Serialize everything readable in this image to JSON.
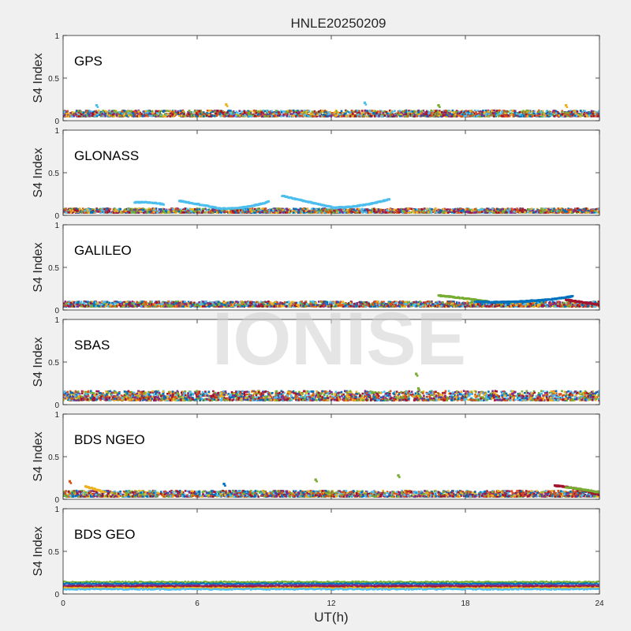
{
  "figure": {
    "title": "HNLE20250209",
    "xlabel": "UT(h)",
    "watermark": "IONISE",
    "background": "#f0f0f0",
    "axes_background": "#ffffff"
  },
  "chart_data": {
    "type": "scatter",
    "title": "HNLE20250209",
    "xlabel": "UT(h)",
    "xlim": [
      0,
      24
    ],
    "xticks": [
      0,
      6,
      12,
      18,
      24
    ],
    "series_colors": [
      "#0072BD",
      "#D95319",
      "#EDB120",
      "#7E2F8E",
      "#77AC30",
      "#4DBEEE",
      "#A2142F"
    ],
    "panels": [
      {
        "label": "GPS",
        "ylabel": "S4 Index",
        "ylim": [
          0,
          1
        ],
        "yticks": [
          0,
          0.5,
          1
        ],
        "baseline_s4": [
          0.05,
          0.12
        ],
        "peaks": [
          {
            "x": 1.5,
            "y": 0.18,
            "color": "#4DBEEE"
          },
          {
            "x": 7.3,
            "y": 0.19,
            "color": "#EDB120"
          },
          {
            "x": 13.5,
            "y": 0.21,
            "color": "#4DBEEE"
          },
          {
            "x": 16.8,
            "y": 0.18,
            "color": "#77AC30"
          },
          {
            "x": 22.5,
            "y": 0.18,
            "color": "#EDB120"
          }
        ],
        "arcs": []
      },
      {
        "label": "GLONASS",
        "ylabel": "S4 Index",
        "ylim": [
          0,
          1
        ],
        "yticks": [
          0,
          0.5,
          1
        ],
        "baseline_s4": [
          0.03,
          0.08
        ],
        "peaks": [],
        "arcs": [
          {
            "x_start": 3.2,
            "x_end": 4.5,
            "y_start": 0.15,
            "y_end": 0.13,
            "y_mid": 0.16,
            "color": "#4DBEEE"
          },
          {
            "x_start": 5.2,
            "x_end": 7.0,
            "y_start": 0.17,
            "y_end": 0.08,
            "y_mid": 0.13,
            "color": "#4DBEEE"
          },
          {
            "x_start": 7.0,
            "x_end": 9.2,
            "y_start": 0.08,
            "y_end": 0.16,
            "y_mid": 0.07,
            "color": "#4DBEEE"
          },
          {
            "x_start": 9.8,
            "x_end": 12.0,
            "y_start": 0.23,
            "y_end": 0.1,
            "y_mid": 0.16,
            "color": "#4DBEEE"
          },
          {
            "x_start": 12.0,
            "x_end": 14.6,
            "y_start": 0.09,
            "y_end": 0.19,
            "y_mid": 0.09,
            "color": "#4DBEEE"
          }
        ]
      },
      {
        "label": "GALILEO",
        "ylabel": "S4 Index",
        "ylim": [
          0,
          1
        ],
        "yticks": [
          0,
          0.5,
          1
        ],
        "baseline_s4": [
          0.04,
          0.1
        ],
        "peaks": [],
        "arcs": [
          {
            "x_start": 16.8,
            "x_end": 19.0,
            "y_start": 0.17,
            "y_end": 0.1,
            "y_mid": 0.14,
            "color": "#77AC30"
          },
          {
            "x_start": 18.5,
            "x_end": 21.0,
            "y_start": 0.1,
            "y_end": 0.11,
            "y_mid": 0.08,
            "color": "#0072BD"
          },
          {
            "x_start": 20.5,
            "x_end": 22.8,
            "y_start": 0.1,
            "y_end": 0.16,
            "y_mid": 0.11,
            "color": "#0072BD"
          },
          {
            "x_start": 22.5,
            "x_end": 24.0,
            "y_start": 0.12,
            "y_end": 0.06,
            "y_mid": 0.09,
            "color": "#A2142F"
          }
        ]
      },
      {
        "label": "SBAS",
        "ylabel": "S4 Index",
        "ylim": [
          0,
          1
        ],
        "yticks": [
          0,
          0.5,
          1
        ],
        "baseline_s4": [
          0.05,
          0.16
        ],
        "peaks": [
          {
            "x": 15.8,
            "y": 0.36,
            "color": "#77AC30"
          },
          {
            "x": 15.9,
            "y": 0.19,
            "color": "#77AC30"
          }
        ],
        "arcs": []
      },
      {
        "label": "BDS NGEO",
        "ylabel": "S4 Index",
        "ylim": [
          0,
          1
        ],
        "yticks": [
          0,
          0.5,
          1
        ],
        "baseline_s4": [
          0.03,
          0.1
        ],
        "peaks": [
          {
            "x": 0.3,
            "y": 0.21,
            "color": "#D95319"
          },
          {
            "x": 11.3,
            "y": 0.23,
            "color": "#77AC30"
          },
          {
            "x": 15.0,
            "y": 0.28,
            "color": "#77AC30"
          },
          {
            "x": 7.2,
            "y": 0.18,
            "color": "#0072BD"
          }
        ],
        "arcs": [
          {
            "x_start": 1.0,
            "x_end": 1.8,
            "y_start": 0.15,
            "y_end": 0.09,
            "y_mid": 0.12,
            "color": "#EDB120"
          },
          {
            "x_start": 22.0,
            "x_end": 24.0,
            "y_start": 0.16,
            "y_end": 0.05,
            "y_mid": 0.14,
            "color": "#A2142F"
          },
          {
            "x_start": 22.5,
            "x_end": 24.0,
            "y_start": 0.14,
            "y_end": 0.08,
            "y_mid": 0.12,
            "color": "#77AC30"
          }
        ]
      },
      {
        "label": "BDS GEO",
        "ylabel": "S4 Index",
        "ylim": [
          0,
          1
        ],
        "yticks": [
          0,
          0.5,
          1
        ],
        "baseline_s4": [
          0.05,
          0.15
        ],
        "bands": [
          0.14,
          0.12,
          0.1,
          0.085,
          0.07,
          0.055
        ],
        "peaks": [],
        "arcs": []
      }
    ]
  }
}
